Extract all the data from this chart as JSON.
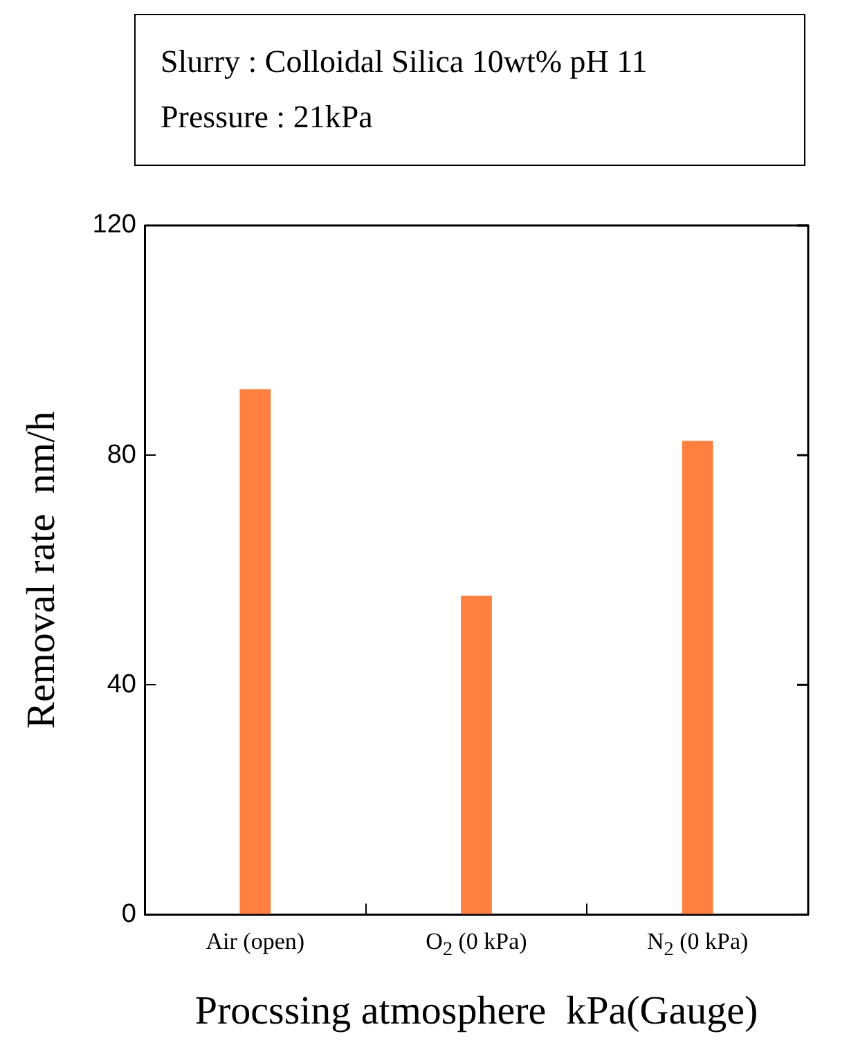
{
  "chart_data": {
    "type": "bar",
    "annotations": [
      "Slurry : Colloidal Silica 10wt% pH 11",
      "Pressure : 21kPa"
    ],
    "categories": [
      "Air  (open)",
      "O$_{2}$ (0 kPa)",
      "N$_{2}$ (0 kPa)"
    ],
    "values": [
      91.5,
      55.5,
      82.5
    ],
    "color": "#ff8040",
    "ylim": [
      0,
      120
    ],
    "yticks": [
      0,
      40,
      80,
      120
    ],
    "xlabel": "Procssing atmosphere  kPa(Gauge)",
    "ylabel": "Removal rate  nm/h",
    "grid": false,
    "legend": false
  }
}
